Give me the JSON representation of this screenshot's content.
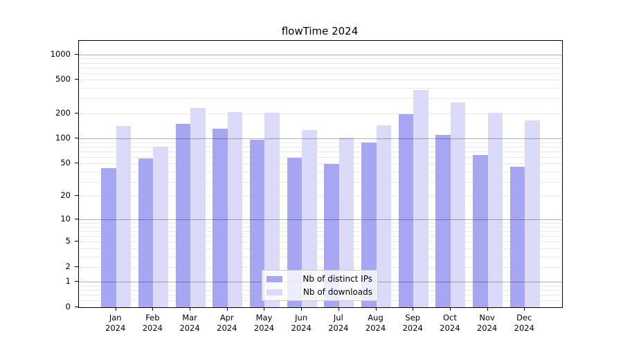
{
  "chart_data": {
    "type": "bar",
    "title": "flowTime 2024",
    "categories": [
      "Jan",
      "Feb",
      "Mar",
      "Apr",
      "May",
      "Jun",
      "Jul",
      "Aug",
      "Sep",
      "Oct",
      "Nov",
      "Dec"
    ],
    "year_label": "2024",
    "series": [
      {
        "name": "Nb of distinct IPs",
        "color": "#a6a6f2",
        "values": [
          44,
          57,
          150,
          130,
          97,
          59,
          49,
          89,
          195,
          110,
          63,
          46
        ]
      },
      {
        "name": "Nb of downloads",
        "color": "#dbdbf9",
        "values": [
          140,
          79,
          233,
          205,
          202,
          127,
          102,
          143,
          380,
          272,
          204,
          164
        ]
      }
    ],
    "y_axis": {
      "scale": "log1p",
      "tick_values": [
        0,
        1,
        2,
        5,
        10,
        20,
        50,
        100,
        200,
        500,
        1000
      ],
      "tick_labels": [
        "0",
        "1",
        "2",
        "5",
        "10",
        "20",
        "50",
        "100",
        "200",
        "500",
        "1000"
      ],
      "major_grid_values": [
        1,
        10,
        100,
        1000
      ],
      "minor_grid_values": [
        0.2,
        0.4,
        0.6,
        0.8,
        2,
        3,
        4,
        5,
        6,
        7,
        8,
        9,
        20,
        30,
        40,
        50,
        60,
        70,
        80,
        90,
        200,
        300,
        400,
        500,
        600,
        700,
        800,
        900
      ],
      "ylim": [
        0,
        1470
      ],
      "grid": true
    },
    "x_axis": {
      "label_rotation": 0
    },
    "legend": {
      "position": "lower center"
    }
  },
  "colors": {
    "background": "#ffffff",
    "axis": "#000000",
    "major_grid": "rgba(0,0,0,0.30)",
    "minor_grid": "rgba(0,0,0,0.08)",
    "legend_border": "#cccccc"
  }
}
